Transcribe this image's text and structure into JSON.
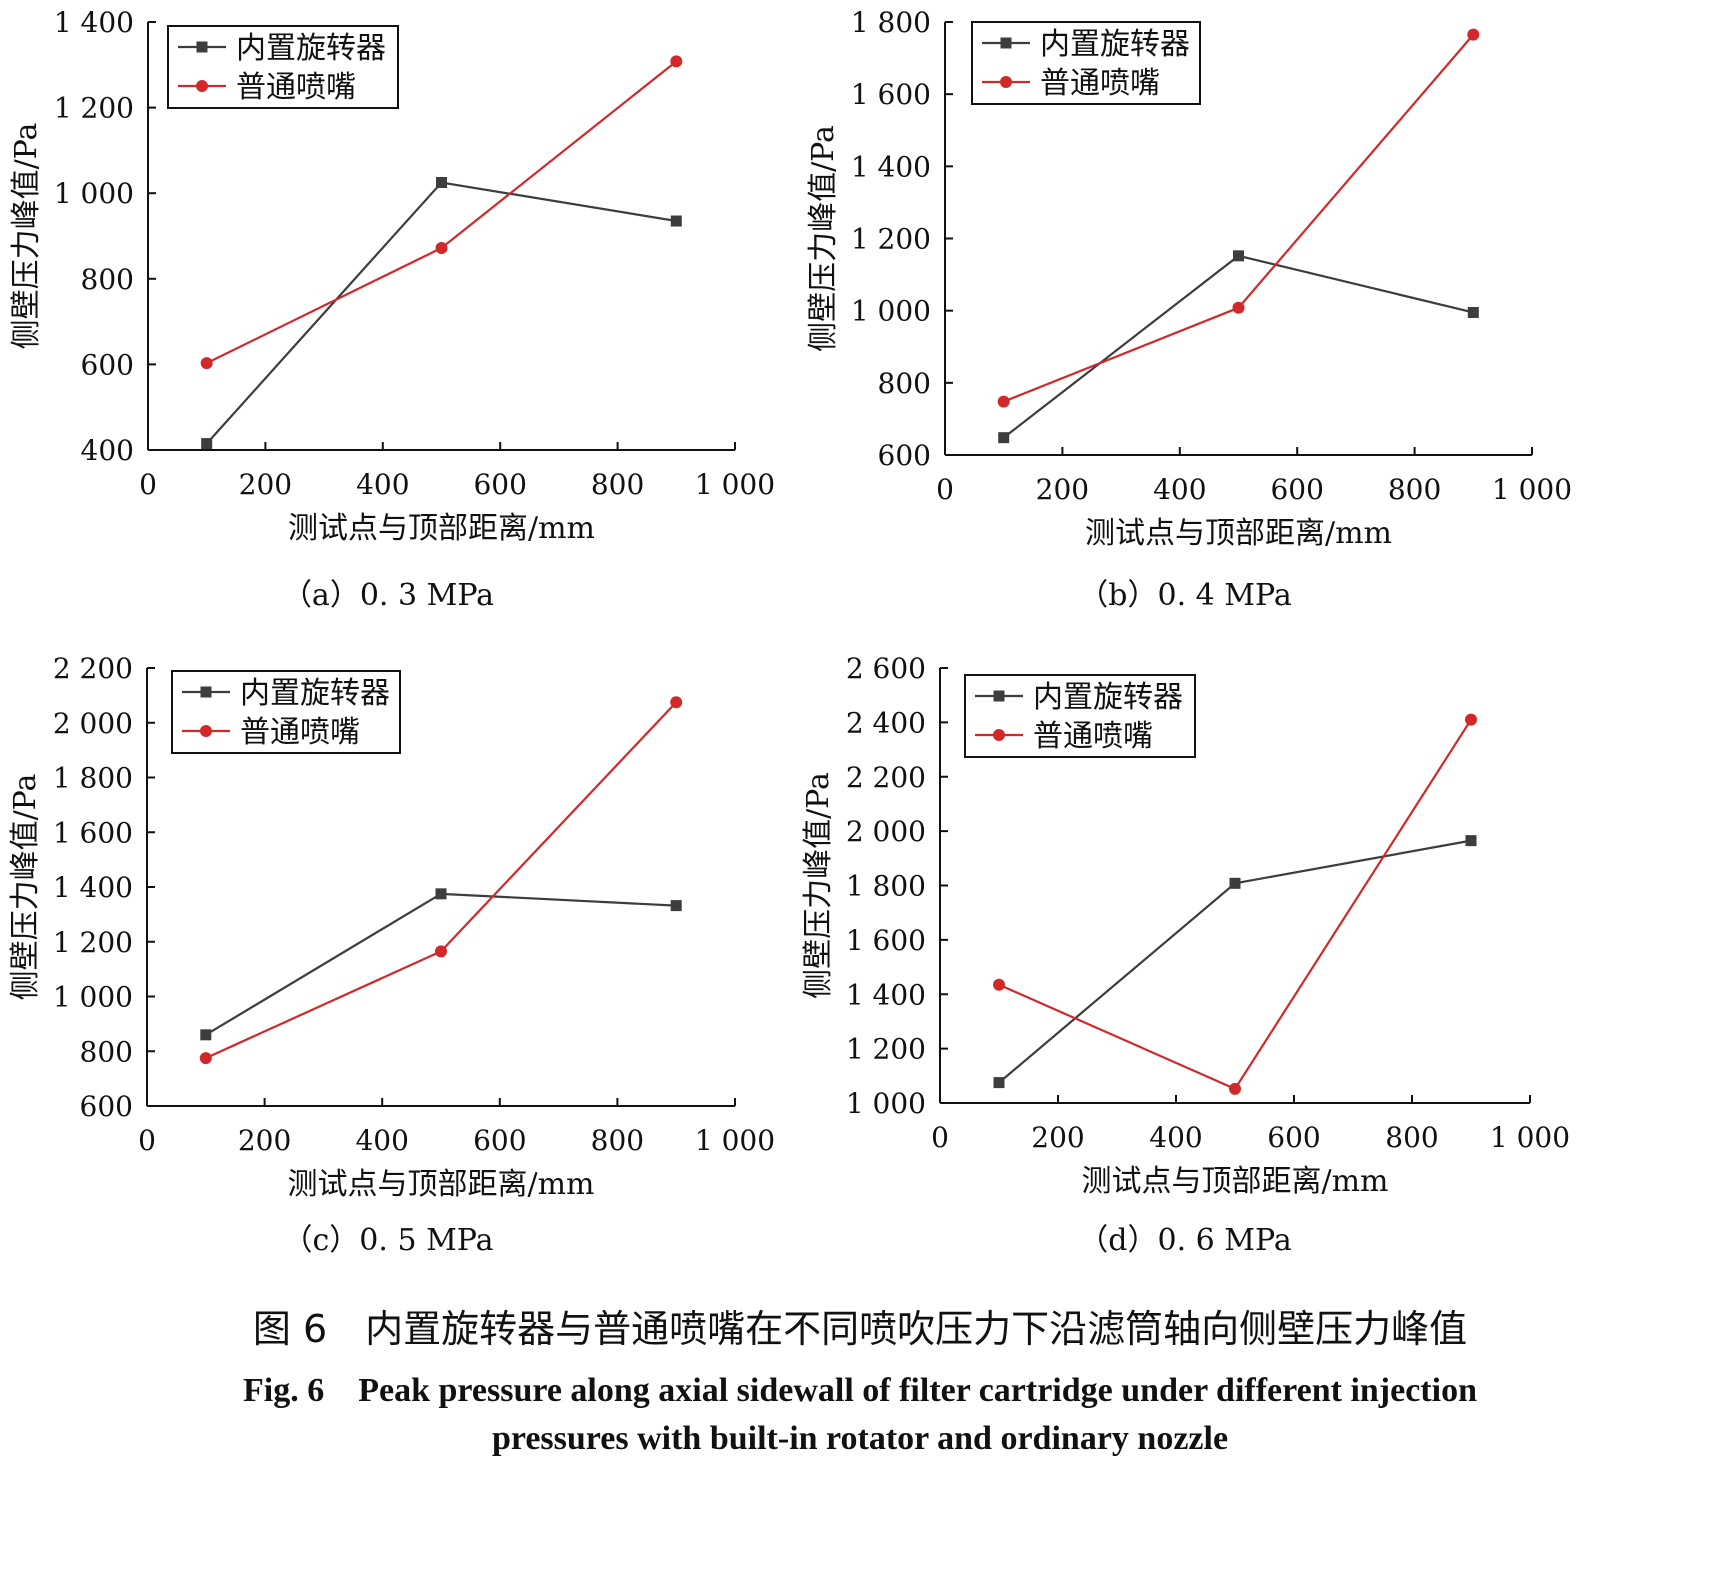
{
  "figure": {
    "caption_cn": "图 6　内置旋转器与普通喷嘴在不同喷吹压力下沿滤筒轴向侧壁压力峰值",
    "caption_en_line1": "Fig. 6　Peak pressure along axial sidewall of filter cartridge under different injection",
    "caption_en_line2": "pressures with built-in rotator and ordinary nozzle"
  },
  "colors": {
    "rotator": "#3d3d3d",
    "nozzle": "#d2282a",
    "axis": "#111111"
  },
  "chart_data": [
    {
      "type": "line",
      "subcaption": "（a）0. 3 MPa",
      "xlabel": "测试点与顶部距离/mm",
      "ylabel": "侧壁压力峰值/Pa",
      "xlim": [
        0,
        1000
      ],
      "ylim": [
        400,
        1400
      ],
      "xticks": [
        0,
        200,
        400,
        600,
        800,
        1000
      ],
      "xtick_labels": [
        "0",
        "200",
        "400",
        "600",
        "800",
        "1 000"
      ],
      "yticks": [
        400,
        600,
        800,
        1000,
        1200,
        1400
      ],
      "ytick_labels": [
        "400",
        "600",
        "800",
        "1 000",
        "1 200",
        "1 400"
      ],
      "x": [
        100,
        500,
        900
      ],
      "series": [
        {
          "name": "内置旋转器",
          "marker": "square",
          "values": [
            415,
            1025,
            935
          ]
        },
        {
          "name": "普通喷嘴",
          "marker": "circle",
          "values": [
            603,
            872,
            1308
          ]
        }
      ],
      "legend": "top-left",
      "grid": false
    },
    {
      "type": "line",
      "subcaption": "（b）0. 4 MPa",
      "xlabel": "测试点与顶部距离/mm",
      "ylabel": "侧壁压力峰值/Pa",
      "xlim": [
        0,
        1000
      ],
      "ylim": [
        600,
        1800
      ],
      "xticks": [
        0,
        200,
        400,
        600,
        800,
        1000
      ],
      "xtick_labels": [
        "0",
        "200",
        "400",
        "600",
        "800",
        "1 000"
      ],
      "yticks": [
        600,
        800,
        1000,
        1200,
        1400,
        1600,
        1800
      ],
      "ytick_labels": [
        "600",
        "800",
        "1 000",
        "1 200",
        "1 400",
        "1 600",
        "1 800"
      ],
      "x": [
        100,
        500,
        900
      ],
      "series": [
        {
          "name": "内置旋转器",
          "marker": "square",
          "values": [
            648,
            1152,
            995
          ]
        },
        {
          "name": "普通喷嘴",
          "marker": "circle",
          "values": [
            748,
            1008,
            1765
          ]
        }
      ],
      "legend": "top-left",
      "grid": false
    },
    {
      "type": "line",
      "subcaption": "（c）0. 5 MPa",
      "xlabel": "测试点与顶部距离/mm",
      "ylabel": "侧壁压力峰值/Pa",
      "xlim": [
        0,
        1000
      ],
      "ylim": [
        600,
        2200
      ],
      "xticks": [
        0,
        200,
        400,
        600,
        800,
        1000
      ],
      "xtick_labels": [
        "0",
        "200",
        "400",
        "600",
        "800",
        "1 000"
      ],
      "yticks": [
        600,
        800,
        1000,
        1200,
        1400,
        1600,
        1800,
        2000,
        2200
      ],
      "ytick_labels": [
        "600",
        "800",
        "1 000",
        "1 200",
        "1 400",
        "1 600",
        "1 800",
        "2 000",
        "2 200"
      ],
      "x": [
        100,
        500,
        900
      ],
      "series": [
        {
          "name": "内置旋转器",
          "marker": "square",
          "values": [
            860,
            1375,
            1332
          ]
        },
        {
          "name": "普通喷嘴",
          "marker": "circle",
          "values": [
            775,
            1165,
            2075
          ]
        }
      ],
      "legend": "top-left",
      "grid": false
    },
    {
      "type": "line",
      "subcaption": "（d）0. 6 MPa",
      "xlabel": "测试点与顶部距离/mm",
      "ylabel": "侧壁压力峰值/Pa",
      "xlim": [
        0,
        1000
      ],
      "ylim": [
        1000,
        2600
      ],
      "xticks": [
        0,
        200,
        400,
        600,
        800,
        1000
      ],
      "xtick_labels": [
        "0",
        "200",
        "400",
        "600",
        "800",
        "1 000"
      ],
      "yticks": [
        1000,
        1200,
        1400,
        1600,
        1800,
        2000,
        2200,
        2400,
        2600
      ],
      "ytick_labels": [
        "1 000",
        "1 200",
        "1 400",
        "1 600",
        "1 800",
        "2 000",
        "2 200",
        "2 400",
        "2 600"
      ],
      "x": [
        100,
        500,
        900
      ],
      "series": [
        {
          "name": "内置旋转器",
          "marker": "square",
          "values": [
            1075,
            1808,
            1965
          ]
        },
        {
          "name": "普通喷嘴",
          "marker": "circle",
          "values": [
            1435,
            1052,
            2410
          ]
        }
      ],
      "legend": "top-left",
      "grid": false
    }
  ]
}
